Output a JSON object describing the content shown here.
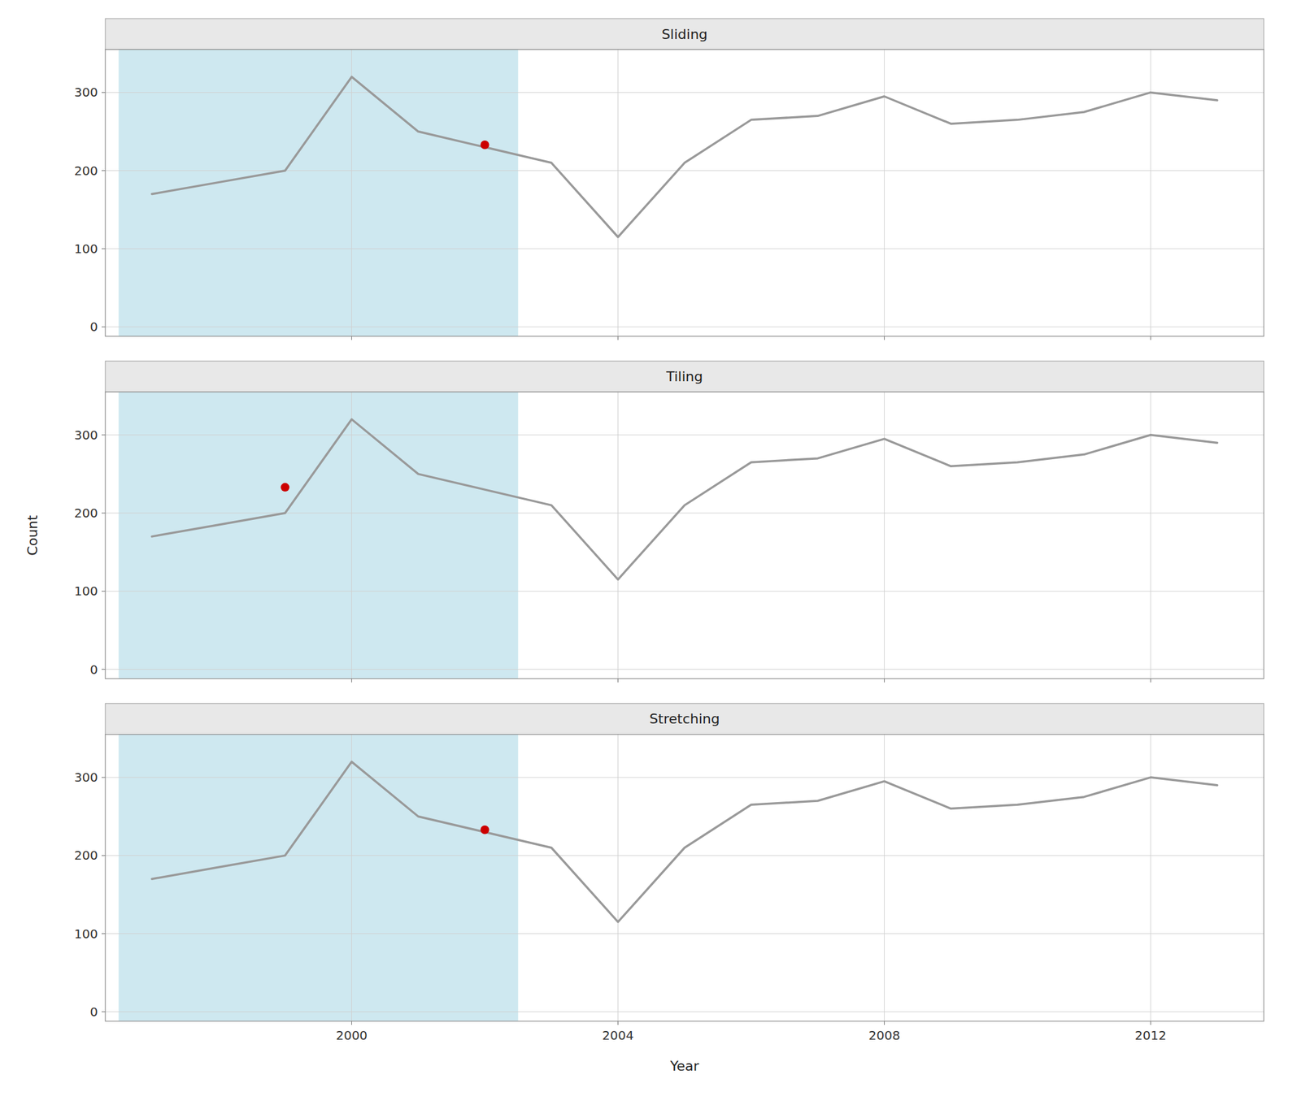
{
  "chart_data": [
    {
      "type": "line",
      "title": "Sliding",
      "series": [
        {
          "type": "line",
          "color": "#999999",
          "x": [
            1997,
            1998,
            1999,
            2000,
            2001,
            2002,
            2003,
            2004,
            2005,
            2006,
            2007,
            2008,
            2009,
            2010,
            2011,
            2012,
            2013
          ],
          "values": [
            170,
            185,
            200,
            320,
            250,
            230,
            210,
            115,
            210,
            265,
            270,
            295,
            260,
            265,
            275,
            300,
            290
          ]
        },
        {
          "type": "scatter",
          "color": "#cc0000",
          "x": [
            2002
          ],
          "values": [
            233
          ]
        }
      ],
      "window": {
        "start": 1997,
        "end": 2002,
        "color": "#add8e6"
      },
      "xlim": [
        1996.3,
        2013.7
      ],
      "xticks": [
        2000,
        2004,
        2008,
        2012
      ],
      "ylim": [
        -12,
        355
      ],
      "yticks": [
        0,
        100,
        200,
        300
      ],
      "grid": true,
      "tick_labels": "y"
    },
    {
      "type": "line",
      "title": "Tiling",
      "ylabel": "Count",
      "series": [
        {
          "type": "line",
          "color": "#999999",
          "x": [
            1997,
            1998,
            1999,
            2000,
            2001,
            2002,
            2003,
            2004,
            2005,
            2006,
            2007,
            2008,
            2009,
            2010,
            2011,
            2012,
            2013
          ],
          "values": [
            170,
            185,
            200,
            320,
            250,
            230,
            210,
            115,
            210,
            265,
            270,
            295,
            260,
            265,
            275,
            300,
            290
          ]
        },
        {
          "type": "scatter",
          "color": "#cc0000",
          "x": [
            1999
          ],
          "values": [
            233
          ]
        }
      ],
      "window": {
        "start": 1997,
        "end": 2002,
        "color": "#add8e6"
      },
      "xlim": [
        1996.3,
        2013.7
      ],
      "xticks": [
        2000,
        2004,
        2008,
        2012
      ],
      "ylim": [
        -12,
        355
      ],
      "yticks": [
        0,
        100,
        200,
        300
      ],
      "grid": true,
      "tick_labels": "y"
    },
    {
      "type": "line",
      "title": "Stretching",
      "xlabel": "Year",
      "series": [
        {
          "type": "line",
          "color": "#999999",
          "x": [
            1997,
            1998,
            1999,
            2000,
            2001,
            2002,
            2003,
            2004,
            2005,
            2006,
            2007,
            2008,
            2009,
            2010,
            2011,
            2012,
            2013
          ],
          "values": [
            170,
            185,
            200,
            320,
            250,
            230,
            210,
            115,
            210,
            265,
            270,
            295,
            260,
            265,
            275,
            300,
            290
          ]
        },
        {
          "type": "scatter",
          "color": "#cc0000",
          "x": [
            2002
          ],
          "values": [
            233
          ]
        }
      ],
      "window": {
        "start": 1997,
        "end": 2002,
        "color": "#add8e6"
      },
      "xlim": [
        1996.3,
        2013.7
      ],
      "xticks": [
        2000,
        2004,
        2008,
        2012
      ],
      "ylim": [
        -12,
        355
      ],
      "yticks": [
        0,
        100,
        200,
        300
      ],
      "grid": true,
      "tick_labels": true
    }
  ]
}
